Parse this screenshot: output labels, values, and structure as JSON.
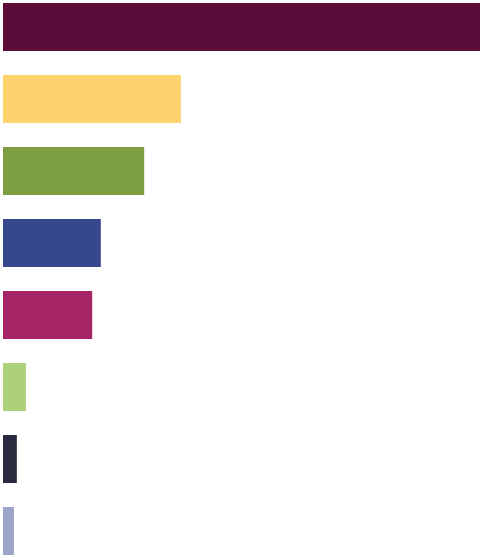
{
  "chart_data": {
    "type": "barh",
    "categories": [
      null,
      null,
      null,
      null,
      null,
      null,
      null,
      null
    ],
    "values": [
      100,
      37.3,
      29.6,
      20.5,
      18.7,
      4.8,
      2.9,
      2.3
    ],
    "colors": [
      "#5c0c38",
      "#fdd36d",
      "#7d9e41",
      "#36478c",
      "#a52565",
      "#afd07a",
      "#2a2a3e",
      "#9ba5c9"
    ],
    "xlim": [
      0,
      100
    ]
  }
}
